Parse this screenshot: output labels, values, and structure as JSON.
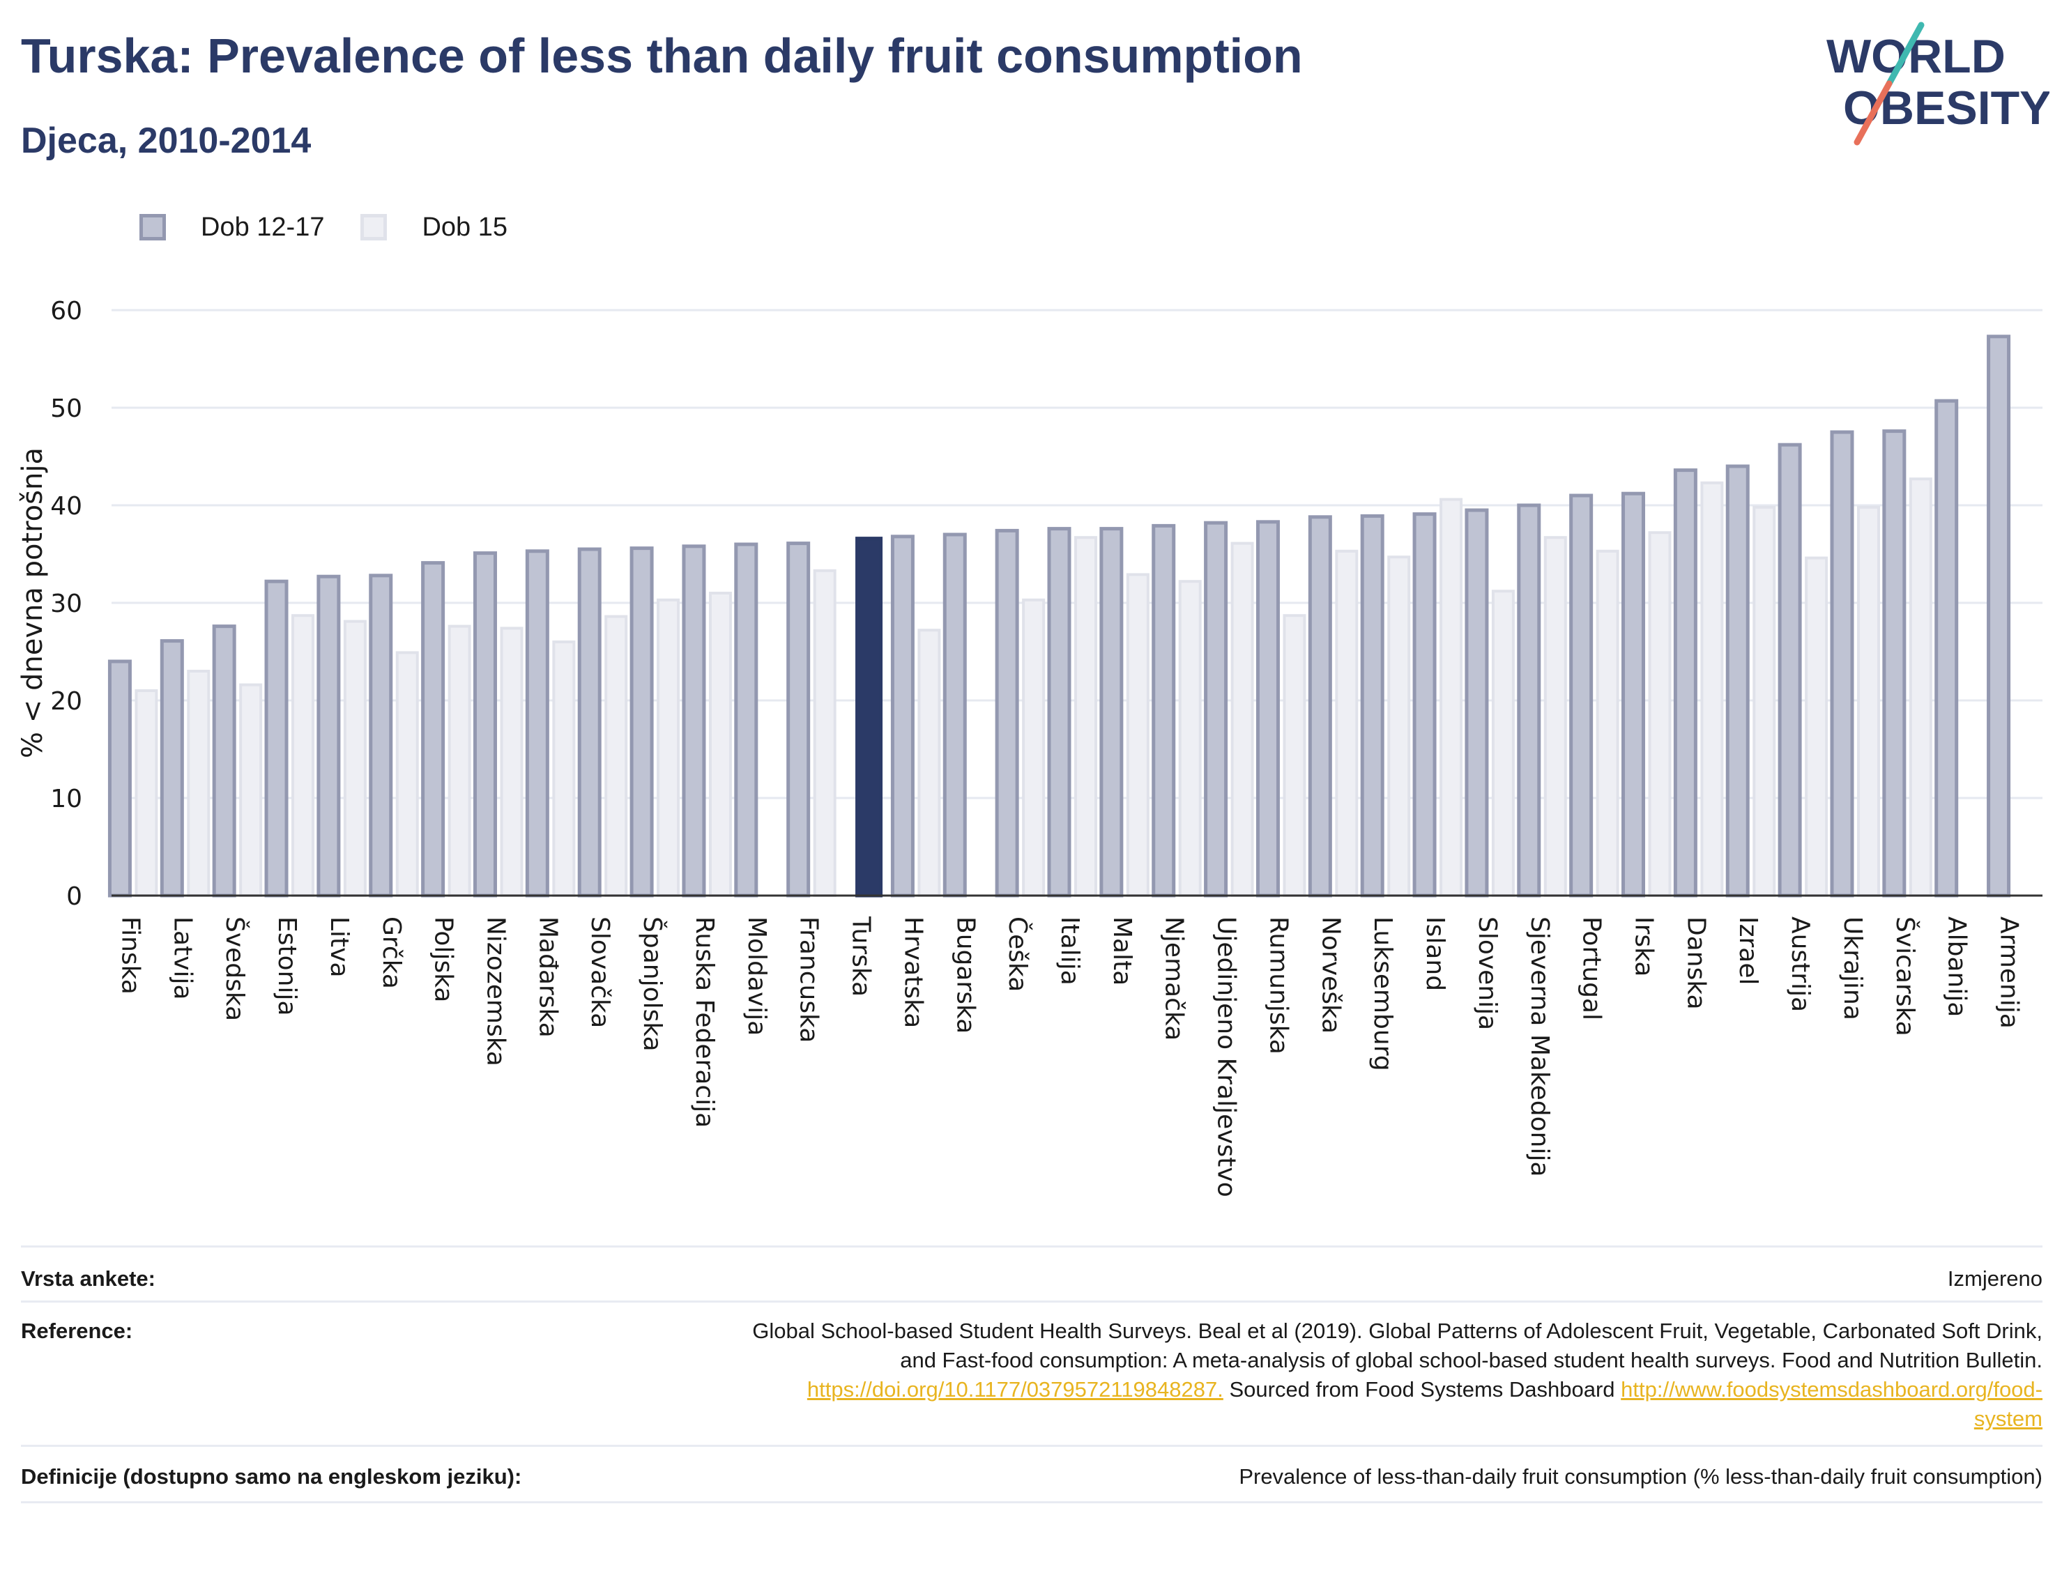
{
  "header": {
    "title": "Turska: Prevalence of less than daily fruit consumption",
    "subtitle": "Djeca, 2010-2014"
  },
  "logo": {
    "line1": "WORLD",
    "line2": "OBESITY"
  },
  "colors": {
    "series_a_fill": "#bfc3d3",
    "series_a_stroke": "#9398b0",
    "series_b_fill": "#eeeff4",
    "series_b_stroke": "#e0e2ea",
    "highlight": "#2b3a67",
    "title": "#2b3a67",
    "link": "#e8b420",
    "logo_slash_top": "#3fb8b0",
    "logo_slash_bottom": "#e8705a"
  },
  "chart_data": {
    "type": "bar",
    "ylabel": "% < dnevna potrošnja",
    "xlabel": "",
    "ylim": [
      0,
      60
    ],
    "yticks": [
      0,
      10,
      20,
      30,
      40,
      50,
      60
    ],
    "grid": true,
    "legend_position": "top-left",
    "highlight_category": "Turska",
    "categories": [
      "Finska",
      "Latvija",
      "Švedska",
      "Estonija",
      "Litva",
      "Grčka",
      "Poljska",
      "Nizozemska",
      "Mađarska",
      "Slovačka",
      "Španjolska",
      "Ruska Federacija",
      "Moldavija",
      "Francuska",
      "Turska",
      "Hrvatska",
      "Bugarska",
      "Češka",
      "Italija",
      "Malta",
      "Njemačka",
      "Ujedinjeno Kraljevstvo",
      "Rumunjska",
      "Norveška",
      "Luksemburg",
      "Island",
      "Slovenija",
      "Sjeverna Makedonija",
      "Portugal",
      "Irska",
      "Danska",
      "Izrael",
      "Austrija",
      "Ukrajina",
      "Švicarska",
      "Albanija",
      "Armenija"
    ],
    "series": [
      {
        "name": "Dob 12-17",
        "values": [
          24.0,
          26.1,
          27.6,
          32.2,
          32.7,
          32.8,
          34.1,
          35.1,
          35.3,
          35.5,
          35.6,
          35.8,
          36.0,
          36.1,
          36.6,
          36.8,
          37.0,
          37.4,
          37.6,
          37.6,
          37.9,
          38.2,
          38.3,
          38.8,
          38.9,
          39.1,
          39.5,
          40.0,
          41.0,
          41.2,
          43.6,
          44.0,
          46.2,
          47.5,
          47.6,
          50.7,
          57.3
        ]
      },
      {
        "name": "Dob 15",
        "values": [
          21.0,
          23.0,
          21.6,
          28.7,
          28.1,
          24.9,
          27.6,
          27.4,
          26.0,
          28.6,
          30.3,
          31.0,
          null,
          33.3,
          null,
          27.2,
          null,
          30.3,
          36.7,
          32.9,
          32.2,
          36.1,
          28.7,
          35.3,
          34.7,
          40.6,
          31.2,
          36.7,
          35.3,
          37.2,
          42.3,
          39.8,
          34.6,
          39.8,
          42.7,
          null,
          null
        ]
      }
    ]
  },
  "meta": {
    "survey_label": "Vrsta ankete:",
    "survey_value": "Izmjereno",
    "reference_label": "Reference:",
    "reference_line1": "Global School-based Student Health Surveys. Beal et al (2019). Global Patterns of Adolescent Fruit, Vegetable, Carbonated Soft Drink,",
    "reference_line2": "and Fast-food consumption: A meta-analysis of global school-based student health surveys. Food and Nutrition Bulletin.",
    "reference_link1": "https://doi.org/10.1177/0379572119848287.",
    "reference_mid": " Sourced from Food Systems Dashboard ",
    "reference_link2a": "http://www.foodsystemsdashboard.org/food-",
    "reference_link2b": "system",
    "definition_label": "Definicije (dostupno samo na engleskom jeziku):",
    "definition_value": "Prevalence of less-than-daily fruit consumption (% less-than-daily fruit consumption)"
  }
}
